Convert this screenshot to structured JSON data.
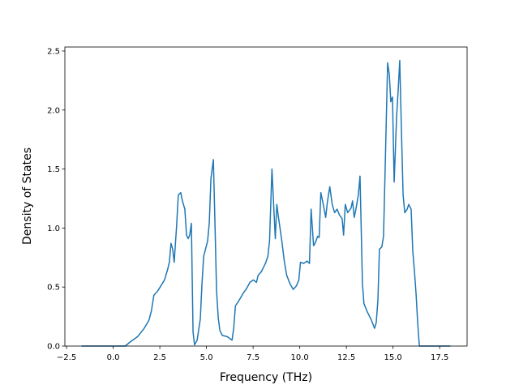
{
  "chart_data": {
    "type": "line",
    "xlabel": "Frequency (THz)",
    "ylabel": "Density of States",
    "x": [
      -1.7,
      0.65,
      0.87,
      1.31,
      1.66,
      1.92,
      2.05,
      2.18,
      2.4,
      2.75,
      2.92,
      3.01,
      3.1,
      3.19,
      3.27,
      3.4,
      3.49,
      3.62,
      3.71,
      3.84,
      3.93,
      4.02,
      4.1,
      4.19,
      4.28,
      4.36,
      4.5,
      4.67,
      4.76,
      4.85,
      5.06,
      5.15,
      5.24,
      5.37,
      5.46,
      5.54,
      5.63,
      5.72,
      5.85,
      6.11,
      6.37,
      6.46,
      6.55,
      6.72,
      6.98,
      7.16,
      7.33,
      7.51,
      7.68,
      7.77,
      7.94,
      8.16,
      8.29,
      8.38,
      8.51,
      8.6,
      8.69,
      8.77,
      8.86,
      9.04,
      9.17,
      9.3,
      9.47,
      9.65,
      9.82,
      9.95,
      10.04,
      10.21,
      10.39,
      10.52,
      10.61,
      10.74,
      10.82,
      10.96,
      11.04,
      11.13,
      11.26,
      11.39,
      11.48,
      11.61,
      11.74,
      11.87,
      12.0,
      12.13,
      12.27,
      12.35,
      12.44,
      12.57,
      12.75,
      12.83,
      12.92,
      13.01,
      13.14,
      13.23,
      13.36,
      13.44,
      13.62,
      13.84,
      14.01,
      14.1,
      14.19,
      14.27,
      14.4,
      14.49,
      14.58,
      14.71,
      14.8,
      14.88,
      14.97,
      15.06,
      15.19,
      15.28,
      15.36,
      15.45,
      15.54,
      15.63,
      15.76,
      15.84,
      15.97,
      16.06,
      16.15,
      16.24,
      16.32,
      16.41,
      18.07
    ],
    "series": [
      {
        "color": "#1f77b4",
        "values": [
          0,
          0,
          0.03,
          0.08,
          0.15,
          0.22,
          0.3,
          0.43,
          0.47,
          0.56,
          0.65,
          0.71,
          0.87,
          0.82,
          0.71,
          1.02,
          1.28,
          1.3,
          1.23,
          1.16,
          0.94,
          0.91,
          0.94,
          1.04,
          0.12,
          0.01,
          0.05,
          0.23,
          0.53,
          0.76,
          0.89,
          1.04,
          1.42,
          1.58,
          1.01,
          0.47,
          0.24,
          0.13,
          0.09,
          0.08,
          0.05,
          0.15,
          0.34,
          0.38,
          0.45,
          0.49,
          0.54,
          0.56,
          0.54,
          0.6,
          0.63,
          0.7,
          0.76,
          0.89,
          1.5,
          1.2,
          0.91,
          1.2,
          1.09,
          0.89,
          0.72,
          0.6,
          0.53,
          0.48,
          0.51,
          0.56,
          0.71,
          0.7,
          0.72,
          0.7,
          1.16,
          0.85,
          0.87,
          0.93,
          0.92,
          1.3,
          1.2,
          1.09,
          1.22,
          1.35,
          1.2,
          1.13,
          1.16,
          1.11,
          1.08,
          0.94,
          1.2,
          1.13,
          1.17,
          1.23,
          1.09,
          1.16,
          1.28,
          1.44,
          0.53,
          0.36,
          0.29,
          0.22,
          0.15,
          0.2,
          0.39,
          0.82,
          0.84,
          0.93,
          1.52,
          2.4,
          2.3,
          2.07,
          2.11,
          1.39,
          1.94,
          2.18,
          2.42,
          1.83,
          1.28,
          1.13,
          1.16,
          1.2,
          1.16,
          0.8,
          0.63,
          0.43,
          0.2,
          0,
          0
        ]
      }
    ],
    "xlim": [
      -2.59,
      18.97
    ],
    "xticks": [
      {
        "value": -2.5,
        "label": "−2.5"
      },
      {
        "value": 0,
        "label": "0.0"
      },
      2.5,
      {
        "value": 5,
        "label": "5.0"
      },
      7.5,
      {
        "value": 10,
        "label": "10.0"
      },
      12.5,
      {
        "value": 15,
        "label": "15.0"
      },
      17.5
    ],
    "ylim": [
      0,
      2.534
    ],
    "yticks": [
      {
        "value": 0,
        "label": "0.0"
      },
      0.5,
      {
        "value": 1,
        "label": "1.0"
      },
      1.5,
      {
        "value": 2,
        "label": "2.0"
      },
      2.5
    ],
    "grid": false
  }
}
